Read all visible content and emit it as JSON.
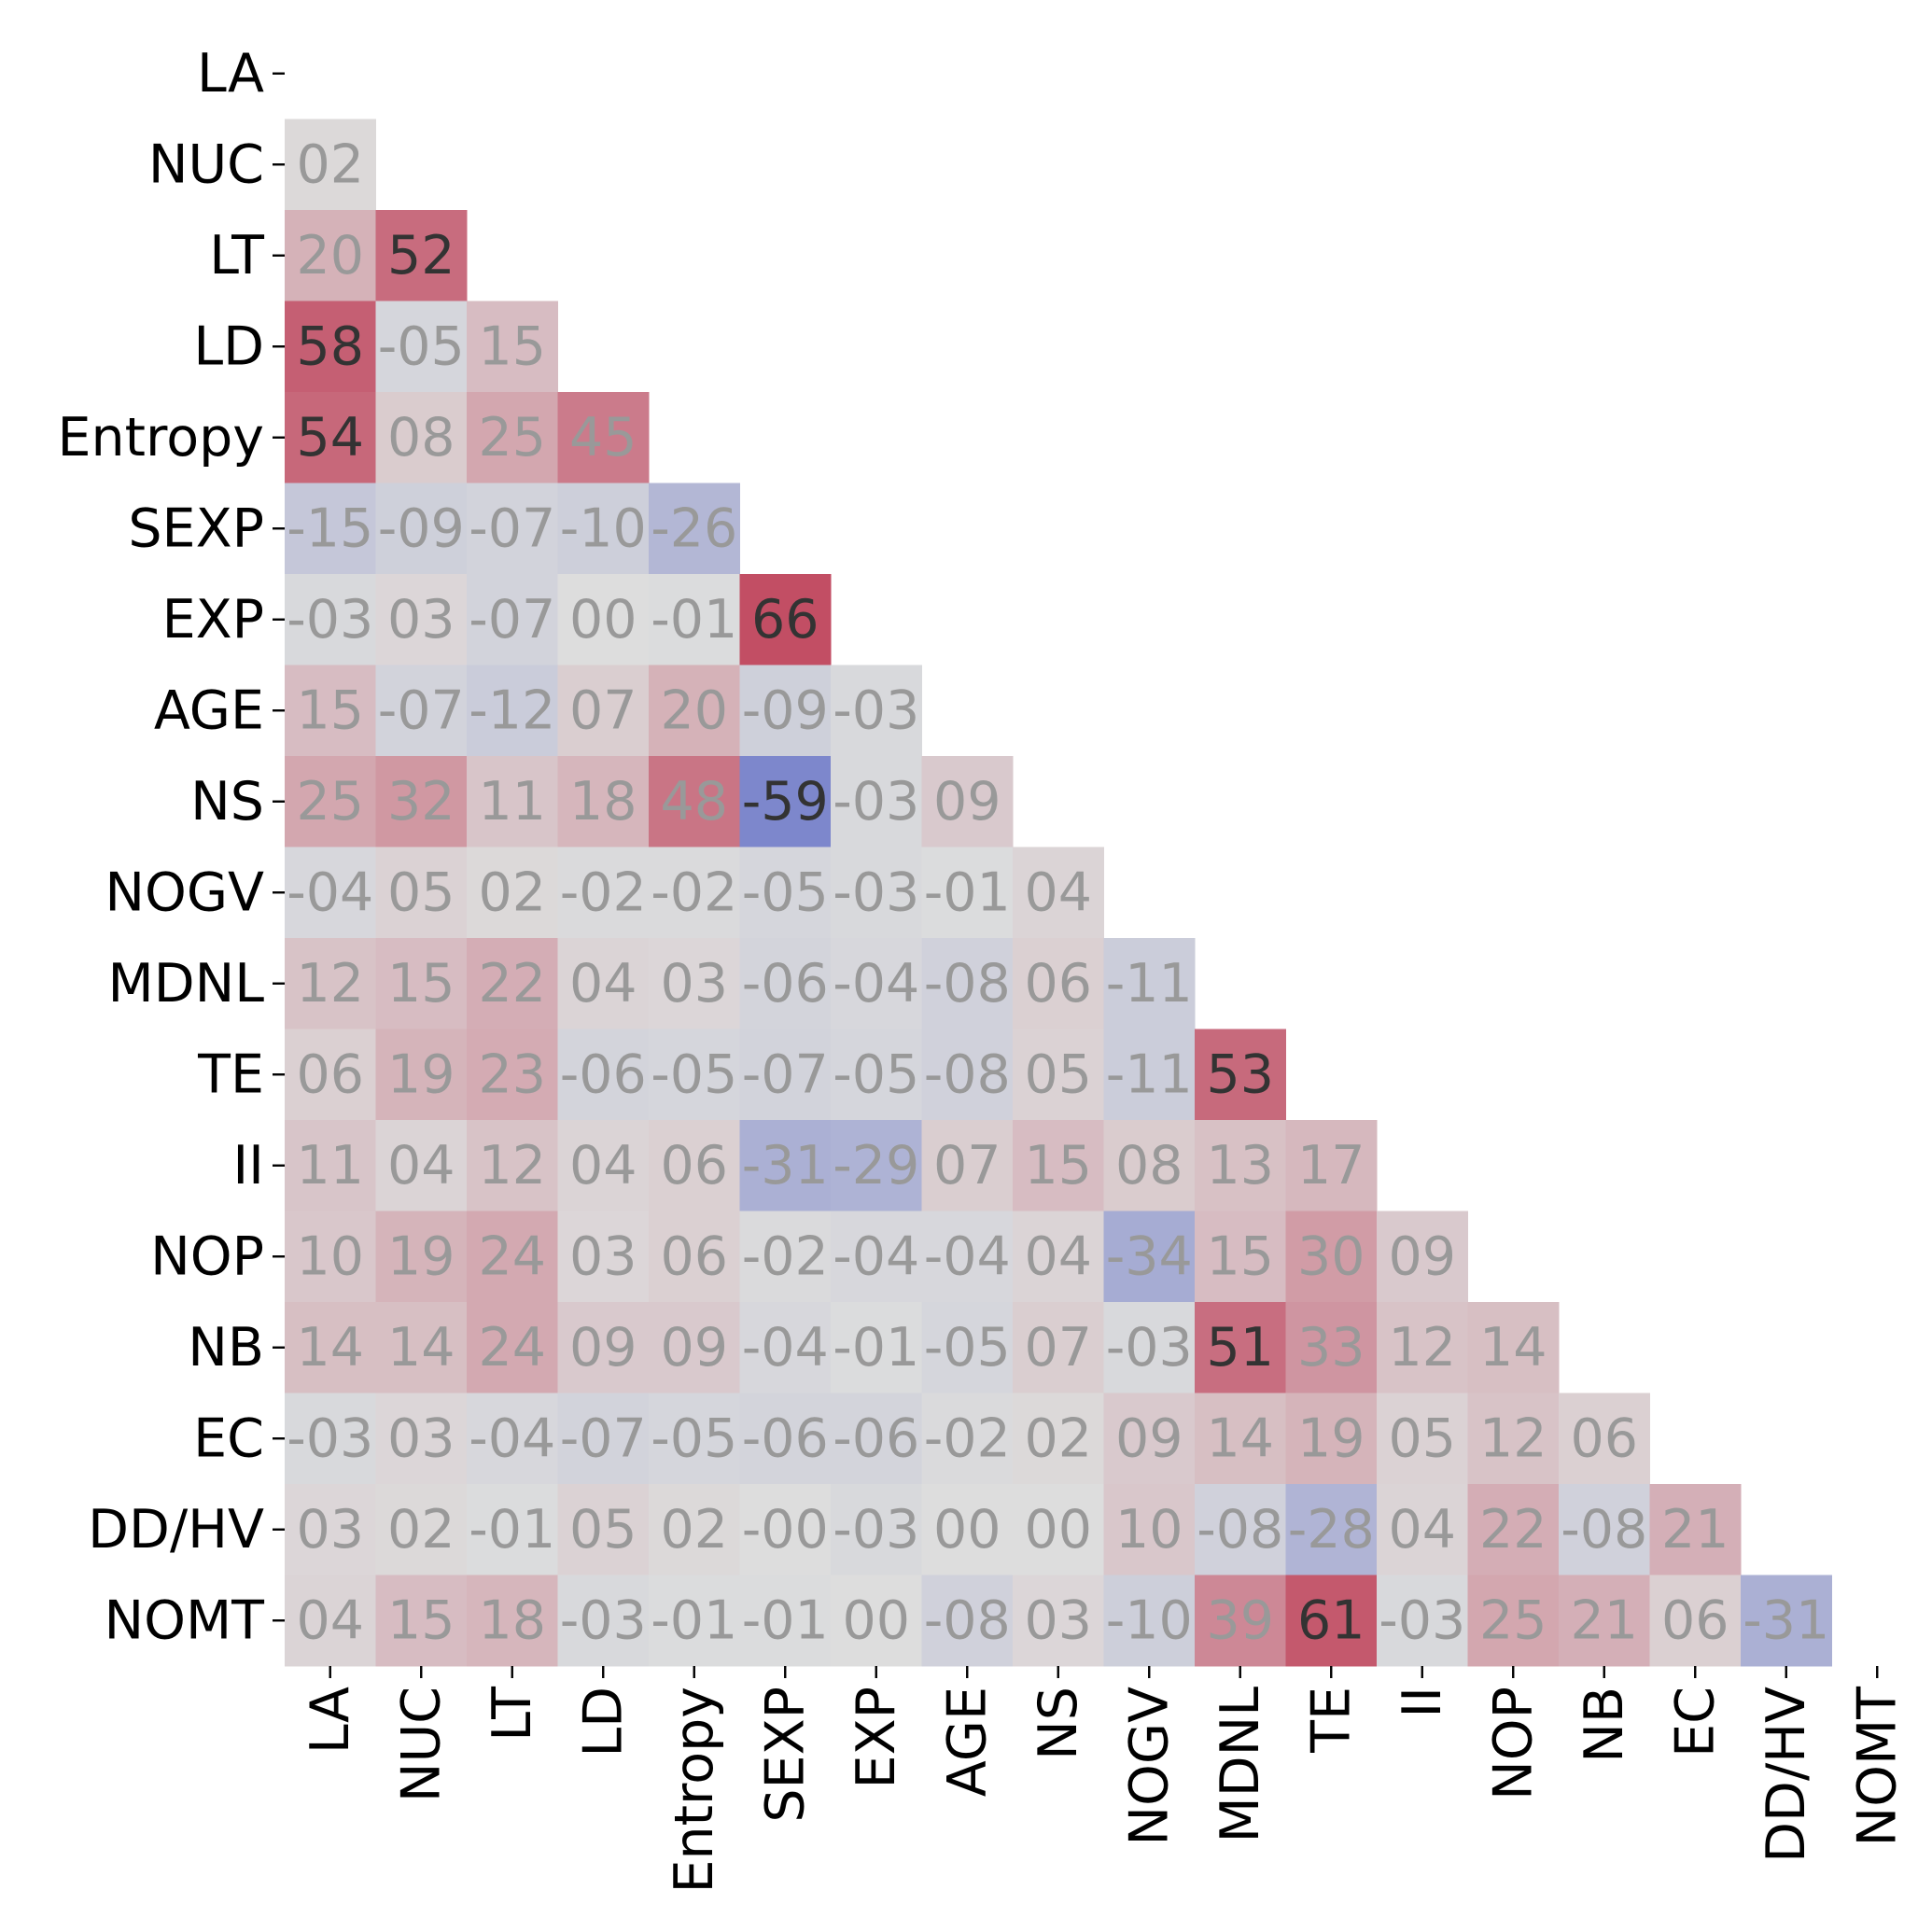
{
  "chart_data": {
    "type": "heatmap",
    "variant": "lower-triangle correlation matrix",
    "variables": [
      "LA",
      "NUC",
      "LT",
      "LD",
      "Entropy",
      "SEXP",
      "EXP",
      "AGE",
      "NS",
      "NOGV",
      "MDNL",
      "TE",
      "II",
      "NOP",
      "NB",
      "EC",
      "DD/HV",
      "NOMT"
    ],
    "values": [
      [],
      [
        2
      ],
      [
        20,
        52
      ],
      [
        58,
        -5,
        15
      ],
      [
        54,
        8,
        25,
        45
      ],
      [
        -15,
        -9,
        -7,
        -10,
        -26
      ],
      [
        -3,
        3,
        -7,
        0,
        -1,
        66
      ],
      [
        15,
        -7,
        -12,
        7,
        20,
        -9,
        -3
      ],
      [
        25,
        32,
        11,
        18,
        48,
        -59,
        -3,
        9
      ],
      [
        -4,
        5,
        2,
        -2,
        -2,
        -5,
        -3,
        -1,
        4
      ],
      [
        12,
        15,
        22,
        4,
        3,
        -6,
        -4,
        -8,
        6,
        -11
      ],
      [
        6,
        19,
        23,
        -6,
        -5,
        -7,
        -5,
        -8,
        5,
        -11,
        53
      ],
      [
        11,
        4,
        12,
        4,
        6,
        -31,
        -29,
        7,
        15,
        8,
        13,
        17
      ],
      [
        10,
        19,
        24,
        3,
        6,
        -2,
        -4,
        -4,
        4,
        -34,
        15,
        30,
        9
      ],
      [
        14,
        14,
        24,
        9,
        9,
        -4,
        -1,
        -5,
        7,
        -3,
        51,
        33,
        12,
        14
      ],
      [
        -3,
        3,
        -4,
        -7,
        -5,
        -6,
        -6,
        -2,
        2,
        9,
        14,
        19,
        5,
        12,
        6
      ],
      [
        3,
        2,
        -1,
        5,
        2,
        0,
        -3,
        0,
        0,
        10,
        -8,
        -28,
        4,
        22,
        -8,
        21
      ],
      [
        4,
        15,
        18,
        -3,
        -1,
        -1,
        0,
        -8,
        3,
        -10,
        39,
        61,
        -3,
        25,
        21,
        6,
        -31
      ]
    ],
    "cell_labels": [
      [],
      [
        "02"
      ],
      [
        "20",
        "52"
      ],
      [
        "58",
        "-05",
        "15"
      ],
      [
        "54",
        "08",
        "25",
        "45"
      ],
      [
        "-15",
        "-09",
        "-07",
        "-10",
        "-26"
      ],
      [
        "-03",
        "03",
        "-07",
        "00",
        "-01",
        "66"
      ],
      [
        "15",
        "-07",
        "-12",
        "07",
        "20",
        "-09",
        "-03"
      ],
      [
        "25",
        "32",
        "11",
        "18",
        "48",
        "-59",
        "-03",
        "09"
      ],
      [
        "-04",
        "05",
        "02",
        "-02",
        "-02",
        "-05",
        "-03",
        "-01",
        "04"
      ],
      [
        "12",
        "15",
        "22",
        "04",
        "03",
        "-06",
        "-04",
        "-08",
        "06",
        "-11"
      ],
      [
        "06",
        "19",
        "23",
        "-06",
        "-05",
        "-07",
        "-05",
        "-08",
        "05",
        "-11",
        "53"
      ],
      [
        "11",
        "04",
        "12",
        "04",
        "06",
        "-31",
        "-29",
        "07",
        "15",
        "08",
        "13",
        "17"
      ],
      [
        "10",
        "19",
        "24",
        "03",
        "06",
        "-02",
        "-04",
        "-04",
        "04",
        "-34",
        "15",
        "30",
        "09"
      ],
      [
        "14",
        "14",
        "24",
        "09",
        "09",
        "-04",
        "-01",
        "-05",
        "07",
        "-03",
        "51",
        "33",
        "12",
        "14"
      ],
      [
        "-03",
        "03",
        "-04",
        "-07",
        "-05",
        "-06",
        "-06",
        "-02",
        "02",
        "09",
        "14",
        "19",
        "05",
        "12",
        "06"
      ],
      [
        "03",
        "02",
        "-01",
        "05",
        "02",
        "-00",
        "-03",
        "00",
        "00",
        "10",
        "-08",
        "-28",
        "04",
        "22",
        "-08",
        "21"
      ],
      [
        "04",
        "15",
        "18",
        "-03",
        "-01",
        "-01",
        "00",
        "-08",
        "03",
        "-10",
        "39",
        "61",
        "-03",
        "25",
        "21",
        "06",
        "-31"
      ]
    ],
    "colormap": "coolwarm",
    "value_range": [
      -100,
      100
    ],
    "colors": {
      "negative": "#3b4cc0",
      "neutral": "#dddddd",
      "positive": "#b40426",
      "label_light": "#999999",
      "label_dark": "#333333"
    },
    "xlabel": "",
    "ylabel": "",
    "title": "",
    "colorbar": false,
    "grid": false
  }
}
